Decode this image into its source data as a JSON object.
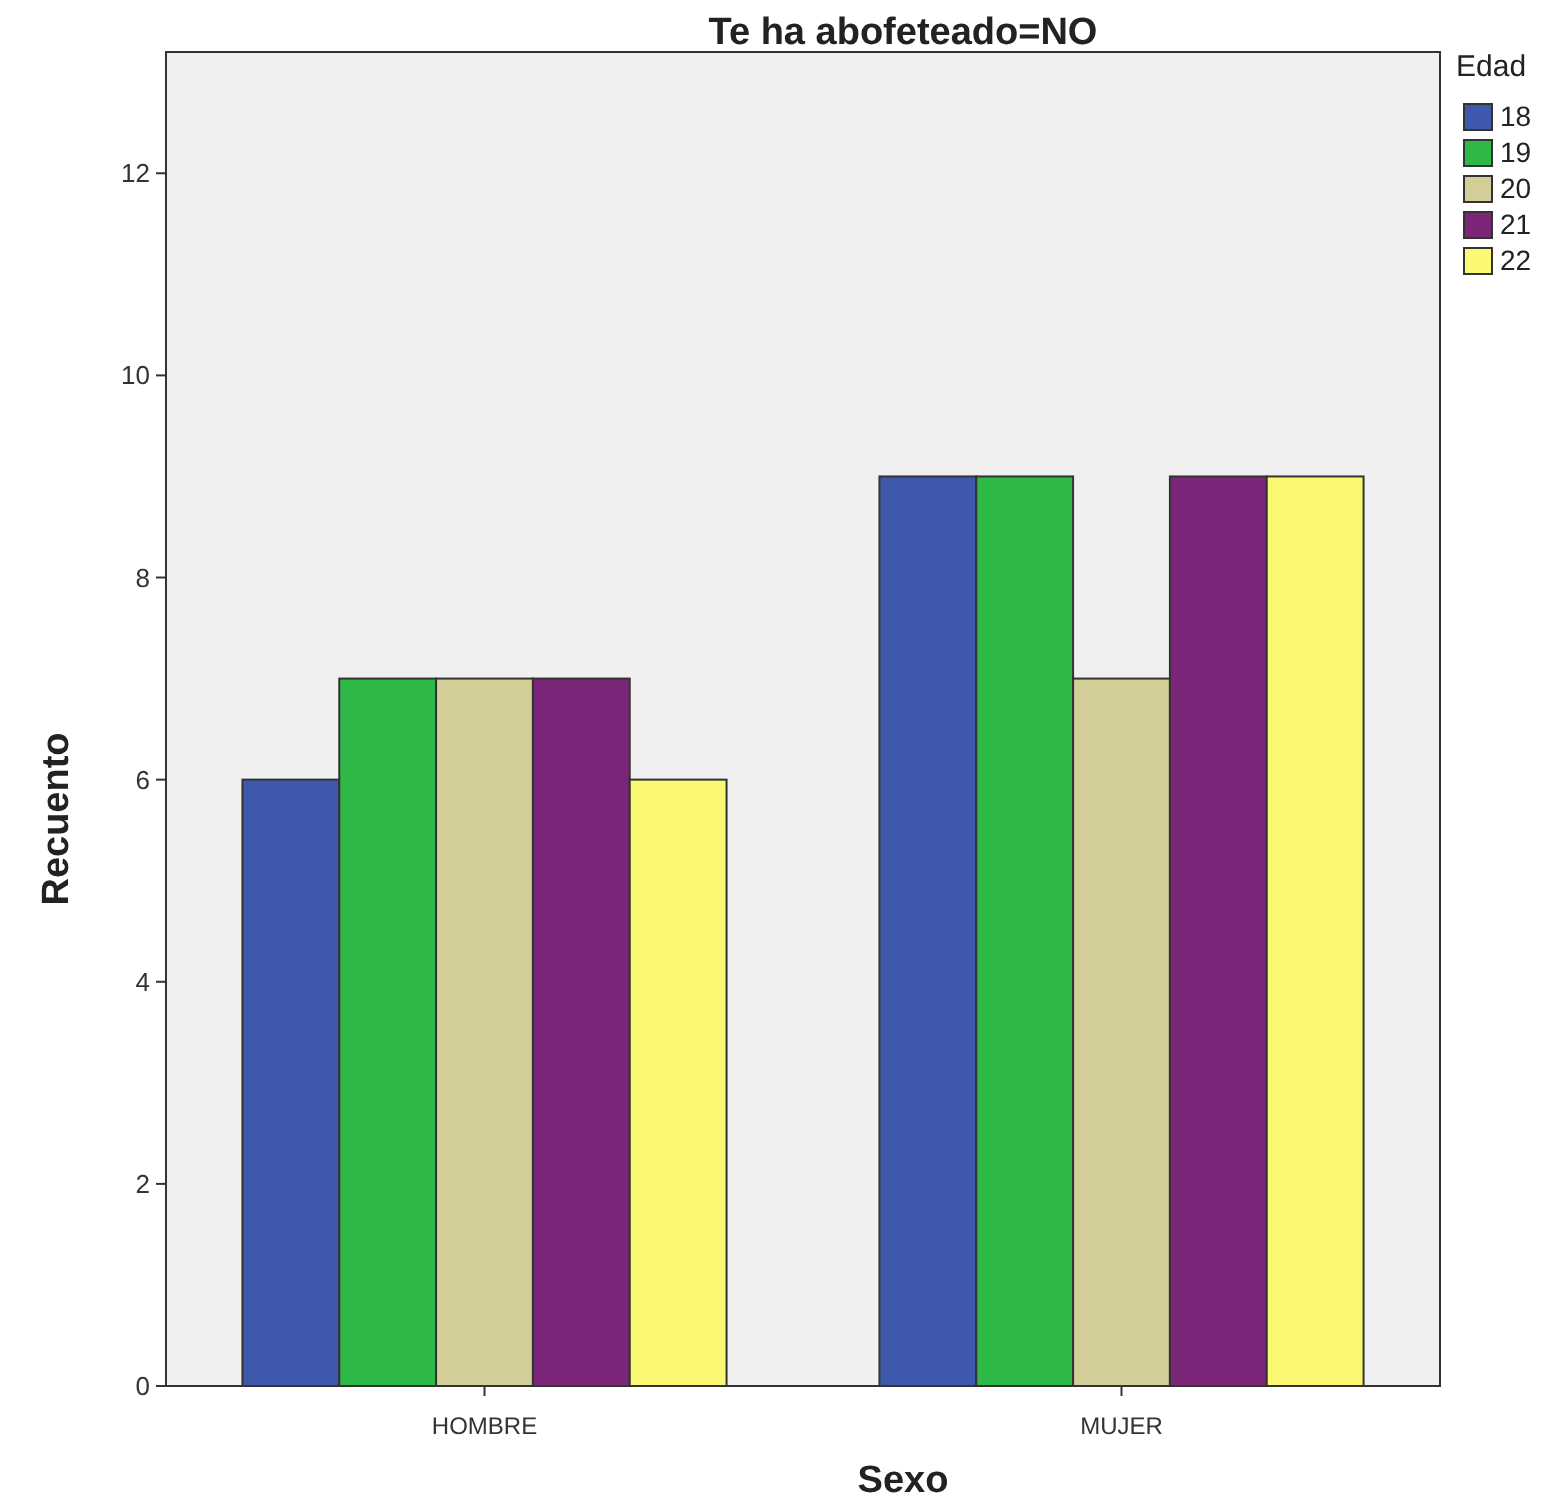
{
  "chart_data": {
    "type": "bar",
    "title": "Te ha abofeteado=NO",
    "xlabel": "Sexo",
    "ylabel": "Recuento",
    "legend_title": "Edad",
    "categories": [
      "HOMBRE",
      "MUJER"
    ],
    "series": [
      {
        "name": "18",
        "color": "#3e58ac",
        "values": [
          6,
          9
        ]
      },
      {
        "name": "19",
        "color": "#2eb848",
        "values": [
          7,
          9
        ]
      },
      {
        "name": "20",
        "color": "#d3ce97",
        "values": [
          7,
          7
        ]
      },
      {
        "name": "21",
        "color": "#7b2578",
        "values": [
          7,
          9
        ]
      },
      {
        "name": "22",
        "color": "#fbf873",
        "values": [
          6,
          9
        ]
      }
    ],
    "ylim": [
      0,
      13.2
    ],
    "yticks": [
      0,
      2,
      4,
      6,
      8,
      10,
      12
    ],
    "grid": false,
    "legend": "top right"
  }
}
